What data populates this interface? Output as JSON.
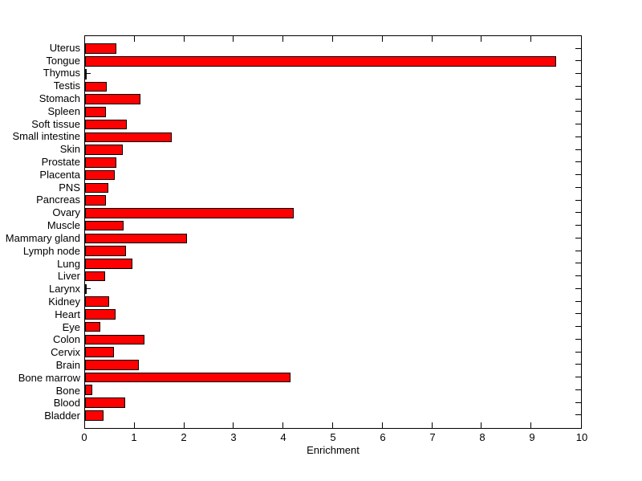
{
  "chart_data": {
    "type": "bar",
    "orientation": "horizontal",
    "title": "",
    "xlabel": "Enrichment",
    "ylabel": "",
    "xlim": [
      0,
      10
    ],
    "xticks": [
      0,
      1,
      2,
      3,
      4,
      5,
      6,
      7,
      8,
      9,
      10
    ],
    "grid": false,
    "legend": null,
    "bar_color": "#ff0000",
    "bar_edge_color": "#000000",
    "categories_top_to_bottom": [
      "Uterus",
      "Tongue",
      "Thymus",
      "Testis",
      "Stomach",
      "Spleen",
      "Soft tissue",
      "Small intestine",
      "Skin",
      "Prostate",
      "Placenta",
      "PNS",
      "Pancreas",
      "Ovary",
      "Muscle",
      "Mammary gland",
      "Lymph node",
      "Lung",
      "Liver",
      "Larynx",
      "Kidney",
      "Heart",
      "Eye",
      "Colon",
      "Cervix",
      "Brain",
      "Bone marrow",
      "Bone",
      "Blood",
      "Bladder"
    ],
    "values": [
      0.63,
      9.5,
      0.02,
      0.43,
      1.12,
      0.42,
      0.84,
      1.74,
      0.76,
      0.63,
      0.6,
      0.47,
      0.42,
      4.2,
      0.78,
      2.05,
      0.82,
      0.96,
      0.4,
      0.02,
      0.49,
      0.61,
      0.3,
      1.2,
      0.58,
      1.08,
      4.15,
      0.15,
      0.81,
      0.37
    ]
  }
}
